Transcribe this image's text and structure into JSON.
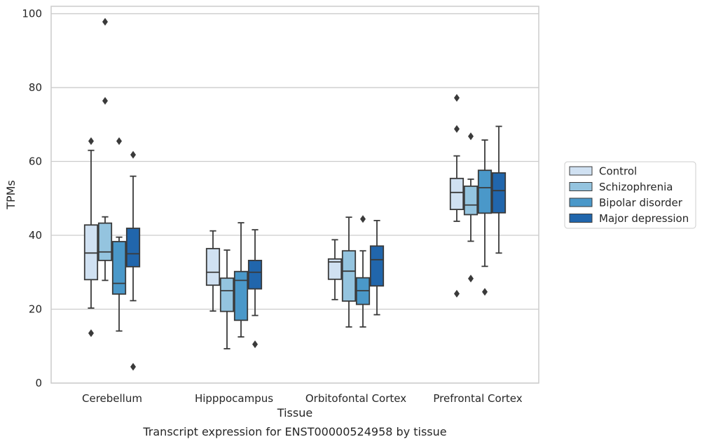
{
  "chart_data": {
    "type": "box",
    "title": "",
    "caption": "Transcript expression for ENST00000524958 by tissue",
    "xlabel": "Tissue",
    "ylabel": "TPMs",
    "ylim": [
      0,
      102
    ],
    "yticks": [
      0,
      20,
      40,
      60,
      80,
      100
    ],
    "grid": "horizontal",
    "legend_position": "right",
    "categories": [
      "Cerebellum",
      "Hipppocampus",
      "Orbitofontal Cortex",
      "Prefrontal Cortex"
    ],
    "series": [
      {
        "name": "Control",
        "color": "#d0e1f2",
        "boxes": [
          {
            "whislo": 20.3,
            "q1": 28.0,
            "med": 35.2,
            "q3": 42.8,
            "whishi": 63.0,
            "fliers": [
              65.5,
              13.5
            ]
          },
          {
            "whislo": 19.5,
            "q1": 26.5,
            "med": 30.0,
            "q3": 36.4,
            "whishi": 41.2,
            "fliers": []
          },
          {
            "whislo": 22.6,
            "q1": 28.1,
            "med": 32.8,
            "q3": 33.6,
            "whishi": 38.8,
            "fliers": []
          },
          {
            "whislo": 43.8,
            "q1": 47.0,
            "med": 51.6,
            "q3": 55.4,
            "whishi": 61.5,
            "fliers": [
              77.2,
              68.8,
              24.2
            ]
          }
        ]
      },
      {
        "name": "Schizophrenia",
        "color": "#94c4df",
        "boxes": [
          {
            "whislo": 27.8,
            "q1": 33.2,
            "med": 35.5,
            "q3": 43.3,
            "whishi": 45.0,
            "fliers": [
              97.8,
              76.4
            ]
          },
          {
            "whislo": 9.3,
            "q1": 19.4,
            "med": 25.0,
            "q3": 28.4,
            "whishi": 36.0,
            "fliers": []
          },
          {
            "whislo": 15.2,
            "q1": 22.2,
            "med": 30.3,
            "q3": 35.8,
            "whishi": 44.9,
            "fliers": []
          },
          {
            "whislo": 38.4,
            "q1": 45.6,
            "med": 48.2,
            "q3": 53.3,
            "whishi": 55.2,
            "fliers": [
              66.8,
              28.3
            ]
          }
        ]
      },
      {
        "name": "Bipolar disorder",
        "color": "#4a98c9",
        "boxes": [
          {
            "whislo": 14.1,
            "q1": 24.1,
            "med": 27.0,
            "q3": 38.3,
            "whishi": 39.5,
            "fliers": [
              65.5
            ]
          },
          {
            "whislo": 12.5,
            "q1": 17.0,
            "med": 27.8,
            "q3": 30.2,
            "whishi": 43.4,
            "fliers": []
          },
          {
            "whislo": 15.2,
            "q1": 21.3,
            "med": 25.0,
            "q3": 28.5,
            "whishi": 35.8,
            "fliers": [
              44.4
            ]
          },
          {
            "whislo": 31.6,
            "q1": 46.0,
            "med": 52.9,
            "q3": 57.6,
            "whishi": 65.8,
            "fliers": [
              24.7
            ]
          }
        ]
      },
      {
        "name": "Major depression",
        "color": "#2166ac",
        "boxes": [
          {
            "whislo": 22.3,
            "q1": 31.5,
            "med": 35.0,
            "q3": 41.9,
            "whishi": 56.0,
            "fliers": [
              61.8,
              4.4
            ]
          },
          {
            "whislo": 18.3,
            "q1": 25.5,
            "med": 30.0,
            "q3": 33.2,
            "whishi": 41.5,
            "fliers": [
              10.5
            ]
          },
          {
            "whislo": 18.5,
            "q1": 26.3,
            "med": 33.4,
            "q3": 37.1,
            "whishi": 44.0,
            "fliers": []
          },
          {
            "whislo": 35.2,
            "q1": 46.1,
            "med": 52.1,
            "q3": 56.9,
            "whishi": 69.5,
            "fliers": []
          }
        ]
      }
    ]
  }
}
